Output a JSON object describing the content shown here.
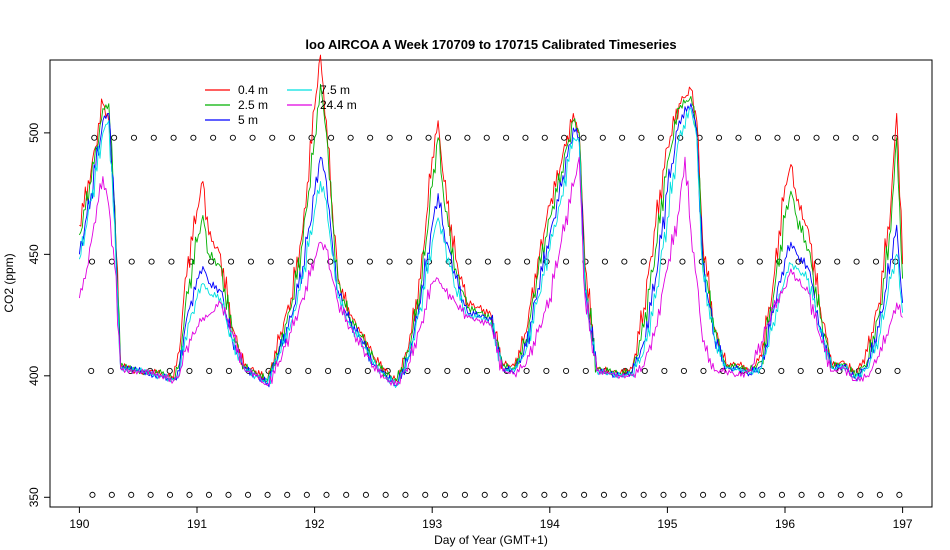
{
  "chart_data": {
    "type": "line",
    "title": "loo AIRCOA A  Week 170709 to 170715  Calibrated Timeseries",
    "xlabel": "Day of Year (GMT+1)",
    "ylabel": "CO2 (ppm)",
    "xlim": [
      189.75,
      197.25
    ],
    "ylim": [
      346,
      530
    ],
    "x_ticks": [
      190,
      191,
      192,
      193,
      194,
      195,
      196,
      197
    ],
    "y_ticks": [
      350,
      400,
      450,
      500
    ],
    "legend_position": "top-left",
    "grid": false,
    "series": [
      {
        "name": "0.4 m",
        "color": "#ff0000",
        "x": [
          190.0,
          190.1,
          190.2,
          190.25,
          190.3,
          190.35,
          190.5,
          190.7,
          190.8,
          190.85,
          190.9,
          191.0,
          191.05,
          191.1,
          191.2,
          191.3,
          191.4,
          191.5,
          191.6,
          191.7,
          191.8,
          191.9,
          192.0,
          192.05,
          192.1,
          192.15,
          192.2,
          192.3,
          192.4,
          192.5,
          192.6,
          192.7,
          192.8,
          192.9,
          193.0,
          193.05,
          193.1,
          193.2,
          193.3,
          193.4,
          193.5,
          193.6,
          193.7,
          193.8,
          193.9,
          194.0,
          194.1,
          194.2,
          194.25,
          194.3,
          194.4,
          194.5,
          194.6,
          194.7,
          194.8,
          194.9,
          195.0,
          195.1,
          195.2,
          195.25,
          195.3,
          195.4,
          195.5,
          195.6,
          195.7,
          195.8,
          195.9,
          196.0,
          196.05,
          196.1,
          196.2,
          196.3,
          196.4,
          196.5,
          196.6,
          196.7,
          196.8,
          196.9,
          196.95,
          197.0
        ],
        "y": [
          462,
          485,
          512,
          505,
          470,
          405,
          402,
          401,
          399,
          410,
          440,
          468,
          480,
          458,
          450,
          420,
          404,
          402,
          398,
          415,
          432,
          460,
          510,
          532,
          505,
          470,
          440,
          425,
          418,
          408,
          402,
          398,
          412,
          440,
          490,
          505,
          480,
          448,
          430,
          428,
          425,
          405,
          404,
          418,
          448,
          470,
          488,
          508,
          500,
          445,
          403,
          402,
          401,
          403,
          428,
          462,
          494,
          512,
          518,
          505,
          455,
          420,
          404,
          405,
          402,
          408,
          438,
          478,
          487,
          472,
          460,
          428,
          404,
          406,
          400,
          410,
          430,
          470,
          508,
          446
        ]
      },
      {
        "name": "2.5 m",
        "color": "#00b000",
        "x": [
          190.0,
          190.1,
          190.2,
          190.25,
          190.3,
          190.35,
          190.5,
          190.7,
          190.8,
          190.85,
          190.9,
          191.0,
          191.05,
          191.1,
          191.2,
          191.3,
          191.4,
          191.5,
          191.6,
          191.7,
          191.8,
          191.9,
          192.0,
          192.05,
          192.1,
          192.15,
          192.2,
          192.3,
          192.4,
          192.5,
          192.6,
          192.7,
          192.8,
          192.9,
          193.0,
          193.05,
          193.1,
          193.2,
          193.3,
          193.4,
          193.5,
          193.6,
          193.7,
          193.8,
          193.9,
          194.0,
          194.1,
          194.2,
          194.25,
          194.3,
          194.4,
          194.5,
          194.6,
          194.7,
          194.8,
          194.9,
          195.0,
          195.1,
          195.2,
          195.25,
          195.3,
          195.4,
          195.5,
          195.6,
          195.7,
          195.8,
          195.9,
          196.0,
          196.05,
          196.1,
          196.2,
          196.3,
          196.4,
          196.5,
          196.6,
          196.7,
          196.8,
          196.9,
          196.95,
          197.0
        ],
        "y": [
          458,
          480,
          510,
          512,
          470,
          404,
          402,
          401,
          399,
          405,
          428,
          455,
          466,
          450,
          445,
          418,
          404,
          401,
          398,
          412,
          428,
          455,
          498,
          520,
          500,
          465,
          438,
          424,
          416,
          407,
          401,
          398,
          410,
          436,
          478,
          498,
          472,
          444,
          428,
          426,
          424,
          404,
          403,
          415,
          442,
          465,
          484,
          505,
          500,
          440,
          403,
          402,
          401,
          402,
          420,
          452,
          488,
          510,
          515,
          502,
          450,
          418,
          404,
          404,
          402,
          406,
          432,
          465,
          476,
          465,
          452,
          424,
          404,
          405,
          400,
          406,
          425,
          460,
          498,
          440
        ]
      },
      {
        "name": "5 m",
        "color": "#0000ff",
        "x": [
          190.0,
          190.1,
          190.2,
          190.25,
          190.3,
          190.35,
          190.5,
          190.7,
          190.8,
          190.85,
          190.9,
          191.0,
          191.05,
          191.1,
          191.2,
          191.3,
          191.4,
          191.5,
          191.6,
          191.7,
          191.8,
          191.9,
          192.0,
          192.05,
          192.1,
          192.15,
          192.2,
          192.3,
          192.4,
          192.5,
          192.6,
          192.7,
          192.8,
          192.9,
          193.0,
          193.05,
          193.1,
          193.2,
          193.3,
          193.4,
          193.5,
          193.6,
          193.7,
          193.8,
          193.9,
          194.0,
          194.1,
          194.2,
          194.25,
          194.3,
          194.4,
          194.5,
          194.6,
          194.7,
          194.8,
          194.9,
          195.0,
          195.1,
          195.2,
          195.25,
          195.3,
          195.4,
          195.5,
          195.6,
          195.7,
          195.8,
          195.9,
          196.0,
          196.05,
          196.1,
          196.2,
          196.3,
          196.4,
          196.5,
          196.6,
          196.7,
          196.8,
          196.9,
          196.95,
          197.0
        ],
        "y": [
          450,
          475,
          505,
          508,
          465,
          403,
          402,
          400,
          398,
          402,
          420,
          440,
          445,
          438,
          435,
          415,
          403,
          400,
          397,
          410,
          424,
          445,
          475,
          490,
          480,
          455,
          435,
          422,
          415,
          405,
          400,
          396,
          408,
          430,
          462,
          475,
          460,
          440,
          426,
          425,
          423,
          403,
          402,
          412,
          436,
          458,
          478,
          502,
          498,
          436,
          402,
          401,
          400,
          401,
          414,
          440,
          476,
          505,
          512,
          500,
          446,
          416,
          403,
          403,
          401,
          404,
          426,
          448,
          455,
          450,
          444,
          420,
          403,
          404,
          399,
          404,
          420,
          448,
          462,
          430
        ]
      },
      {
        "name": "7.5 m",
        "color": "#00e0e0",
        "x": [
          190.0,
          190.1,
          190.2,
          190.25,
          190.3,
          190.35,
          190.5,
          190.7,
          190.8,
          190.85,
          190.9,
          191.0,
          191.05,
          191.1,
          191.2,
          191.3,
          191.4,
          191.5,
          191.6,
          191.7,
          191.8,
          191.9,
          192.0,
          192.05,
          192.1,
          192.15,
          192.2,
          192.3,
          192.4,
          192.5,
          192.6,
          192.7,
          192.8,
          192.9,
          193.0,
          193.05,
          193.1,
          193.2,
          193.3,
          193.4,
          193.5,
          193.6,
          193.7,
          193.8,
          193.9,
          194.0,
          194.1,
          194.2,
          194.25,
          194.3,
          194.4,
          194.5,
          194.6,
          194.7,
          194.8,
          194.9,
          195.0,
          195.1,
          195.2,
          195.25,
          195.3,
          195.4,
          195.5,
          195.6,
          195.7,
          195.8,
          195.9,
          196.0,
          196.05,
          196.1,
          196.2,
          196.3,
          196.4,
          196.5,
          196.6,
          196.7,
          196.8,
          196.9,
          196.95,
          197.0
        ],
        "y": [
          448,
          472,
          500,
          505,
          462,
          403,
          402,
          400,
          398,
          401,
          416,
          432,
          438,
          434,
          432,
          414,
          403,
          400,
          397,
          409,
          422,
          440,
          468,
          480,
          472,
          450,
          432,
          421,
          414,
          405,
          400,
          396,
          407,
          428,
          455,
          465,
          455,
          436,
          425,
          424,
          422,
          403,
          402,
          411,
          432,
          452,
          474,
          498,
          496,
          434,
          402,
          401,
          400,
          401,
          410,
          432,
          465,
          498,
          510,
          498,
          444,
          415,
          403,
          403,
          401,
          403,
          422,
          440,
          446,
          444,
          440,
          418,
          403,
          404,
          399,
          403,
          416,
          440,
          450,
          426
        ]
      },
      {
        "name": "24.4 m",
        "color": "#e000e0",
        "x": [
          190.0,
          190.05,
          190.1,
          190.15,
          190.2,
          190.25,
          190.3,
          190.35,
          190.5,
          190.7,
          190.8,
          190.85,
          190.9,
          191.0,
          191.05,
          191.1,
          191.2,
          191.3,
          191.4,
          191.5,
          191.6,
          191.7,
          191.8,
          191.9,
          192.0,
          192.05,
          192.1,
          192.15,
          192.2,
          192.3,
          192.4,
          192.5,
          192.6,
          192.7,
          192.8,
          192.9,
          193.0,
          193.05,
          193.1,
          193.2,
          193.3,
          193.4,
          193.5,
          193.6,
          193.7,
          193.8,
          193.9,
          194.0,
          194.1,
          194.2,
          194.25,
          194.3,
          194.4,
          194.5,
          194.6,
          194.7,
          194.8,
          194.9,
          195.0,
          195.1,
          195.15,
          195.2,
          195.25,
          195.3,
          195.4,
          195.5,
          195.6,
          195.7,
          195.8,
          195.9,
          196.0,
          196.05,
          196.1,
          196.2,
          196.3,
          196.4,
          196.5,
          196.6,
          196.7,
          196.8,
          196.9,
          196.95,
          197.0
        ],
        "y": [
          432,
          440,
          455,
          470,
          482,
          470,
          445,
          403,
          402,
          400,
          398,
          400,
          410,
          420,
          424,
          425,
          430,
          418,
          403,
          400,
          396,
          406,
          418,
          432,
          448,
          455,
          452,
          440,
          430,
          420,
          412,
          404,
          399,
          396,
          405,
          420,
          438,
          440,
          436,
          430,
          424,
          423,
          421,
          402,
          401,
          405,
          418,
          432,
          456,
          478,
          490,
          432,
          402,
          401,
          400,
          400,
          404,
          420,
          444,
          468,
          490,
          460,
          440,
          414,
          402,
          402,
          400,
          402,
          414,
          428,
          436,
          444,
          440,
          434,
          416,
          402,
          403,
          398,
          400,
          408,
          422,
          430,
          424
        ]
      }
    ]
  },
  "reference_points": {
    "color": "#000000",
    "levels": [
      498,
      447,
      402,
      351
    ]
  }
}
